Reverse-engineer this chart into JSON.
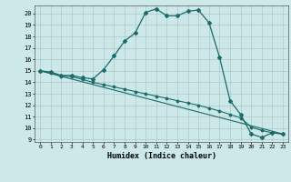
{
  "title": "",
  "xlabel": "Humidex (Indice chaleur)",
  "background_color": "#cce8e8",
  "grid_color": "#b0c8c8",
  "line_color": "#1a6b6b",
  "xlim": [
    -0.5,
    23.5
  ],
  "ylim": [
    8.8,
    20.7
  ],
  "xticks": [
    0,
    1,
    2,
    3,
    4,
    5,
    6,
    7,
    8,
    9,
    10,
    11,
    12,
    13,
    14,
    15,
    16,
    17,
    18,
    19,
    20,
    21,
    22,
    23
  ],
  "yticks": [
    9,
    10,
    11,
    12,
    13,
    14,
    15,
    16,
    17,
    18,
    19,
    20
  ],
  "line1_x": [
    0,
    1,
    2,
    3,
    4,
    5,
    6,
    7,
    8,
    9,
    10,
    11,
    12,
    13,
    14,
    15,
    16,
    17,
    18,
    19,
    20,
    21,
    22,
    23
  ],
  "line1_y": [
    15.0,
    14.9,
    14.6,
    14.6,
    14.4,
    14.3,
    15.1,
    16.3,
    17.6,
    18.3,
    20.1,
    20.4,
    19.8,
    19.8,
    20.2,
    20.3,
    19.2,
    16.2,
    12.4,
    11.2,
    9.5,
    9.2,
    9.6,
    9.5
  ],
  "line2_x": [
    0,
    1,
    2,
    3,
    4,
    5,
    6,
    7,
    8,
    9,
    10,
    11,
    12,
    13,
    14,
    15,
    16,
    17,
    18,
    19,
    20,
    21,
    22,
    23
  ],
  "line2_y": [
    15.0,
    14.8,
    14.55,
    14.5,
    14.25,
    14.0,
    13.8,
    13.6,
    13.4,
    13.2,
    13.0,
    12.8,
    12.6,
    12.4,
    12.2,
    12.0,
    11.75,
    11.5,
    11.2,
    10.9,
    10.1,
    9.8,
    9.6,
    9.5
  ],
  "line3_x": [
    0,
    23
  ],
  "line3_y": [
    15.0,
    9.5
  ]
}
